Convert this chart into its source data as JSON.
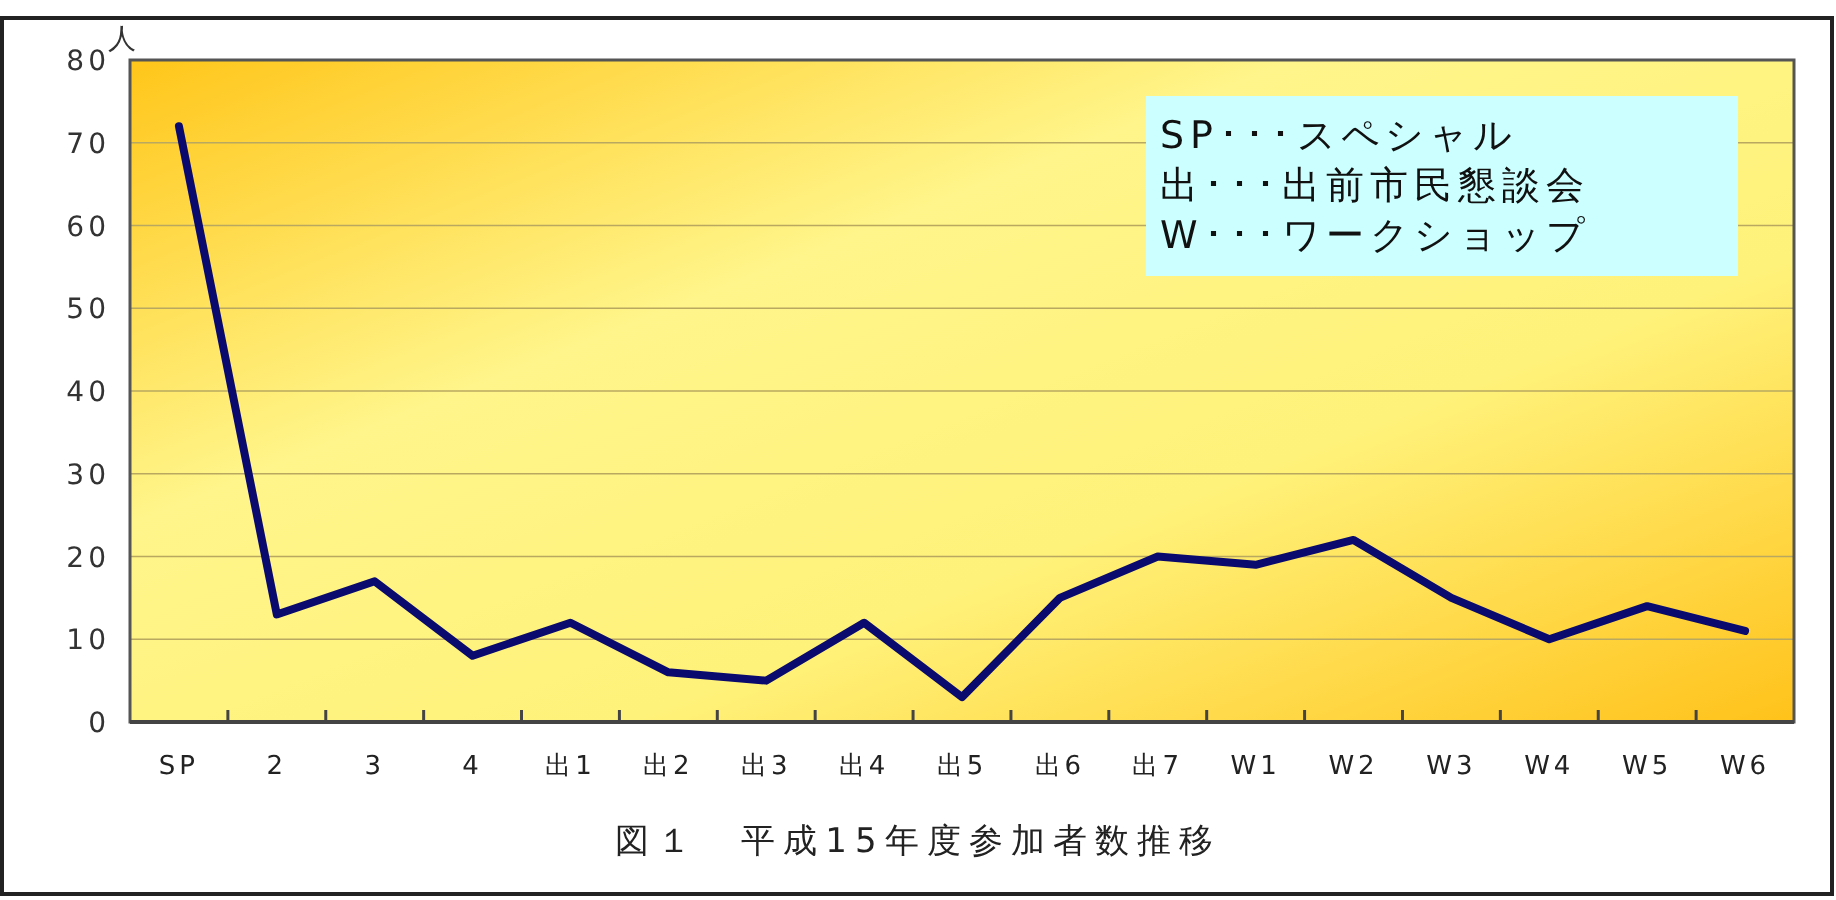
{
  "chart_data": {
    "type": "line",
    "title": "図１　平成15年度参加者数推移",
    "ylabel": "人",
    "categories": [
      "SP",
      "2",
      "3",
      "4",
      "出1",
      "出2",
      "出3",
      "出4",
      "出5",
      "出6",
      "出7",
      "W1",
      "W2",
      "W3",
      "W4",
      "W5",
      "W6"
    ],
    "series": [
      {
        "color": "#0a0a6e",
        "values": [
          72,
          13,
          17,
          8,
          12,
          6,
          5,
          12,
          3,
          15,
          20,
          19,
          22,
          15,
          10,
          14,
          11
        ]
      }
    ],
    "ylim": [
      0,
      80
    ],
    "yticks": [
      0,
      10,
      20,
      30,
      40,
      50,
      60,
      70,
      80
    ],
    "grid": "y",
    "marker": "none",
    "line_style": "solid",
    "annotations": [
      "SP･･･スペシャル",
      "出･･･出前市民懇談会",
      "W･･･ワークショップ"
    ]
  }
}
